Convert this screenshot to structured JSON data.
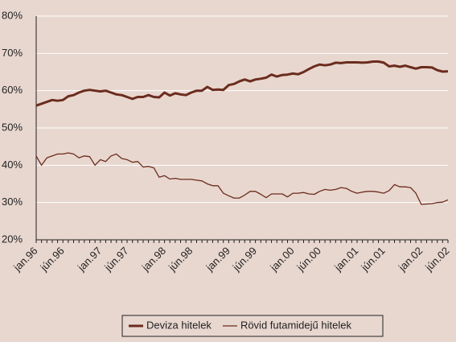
{
  "chart_data": {
    "type": "line",
    "categories": [
      "jan.96",
      null,
      null,
      null,
      null,
      "jún.96",
      null,
      null,
      null,
      null,
      null,
      null,
      "jan.97",
      null,
      null,
      null,
      null,
      "jún.97",
      null,
      null,
      null,
      null,
      null,
      null,
      "jan.98",
      null,
      null,
      null,
      null,
      "jún.98",
      null,
      null,
      null,
      null,
      null,
      null,
      "jan.99",
      null,
      null,
      null,
      null,
      "jún.99",
      null,
      null,
      null,
      null,
      null,
      null,
      "jan.00",
      null,
      null,
      null,
      null,
      "jún.00",
      null,
      null,
      null,
      null,
      null,
      null,
      "jan.01",
      null,
      null,
      null,
      null,
      "jún.01",
      null,
      null,
      null,
      null,
      null,
      null,
      "jan.02",
      null,
      null,
      null,
      null,
      "jún.02"
    ],
    "series": [
      {
        "name": "Deviza hitelek",
        "color": "#6b2c1e",
        "width": 3,
        "values": [
          56,
          56.5,
          57,
          57.5,
          57.3,
          57.5,
          58.5,
          58.8,
          59.5,
          60,
          60.2,
          60,
          59.8,
          60,
          59.5,
          59,
          58.8,
          58.3,
          57.8,
          58.3,
          58.3,
          58.8,
          58.3,
          58.2,
          59.5,
          58.7,
          59.3,
          59,
          58.8,
          59.5,
          60,
          60,
          61,
          60.2,
          60.3,
          60.2,
          61.5,
          61.8,
          62.5,
          63,
          62.5,
          63,
          63.2,
          63.5,
          64.3,
          63.8,
          64.2,
          64.3,
          64.6,
          64.4,
          65,
          65.8,
          66.5,
          67,
          66.8,
          67,
          67.5,
          67.4,
          67.6,
          67.6,
          67.6,
          67.5,
          67.6,
          67.8,
          67.8,
          67.5,
          66.5,
          66.7,
          66.4,
          66.7,
          66.3,
          65.9,
          66.3,
          66.3,
          66.2,
          65.5,
          65.1,
          65.2
        ]
      },
      {
        "name": "Rövid futamidejű hitelek",
        "color": "#6b2c1e",
        "width": 1.3,
        "values": [
          42.5,
          40,
          42,
          42.5,
          43,
          43,
          43.3,
          43,
          42,
          42.5,
          42.3,
          40,
          41.5,
          41,
          42.5,
          43,
          41.8,
          41.5,
          40.8,
          41,
          39.5,
          39.7,
          39.3,
          36.8,
          37.2,
          36.3,
          36.5,
          36.2,
          36.2,
          36.2,
          36,
          35.8,
          35,
          34.5,
          34.5,
          32.5,
          31.8,
          31.2,
          31.2,
          32,
          33,
          33,
          32.2,
          31.3,
          32.3,
          32.3,
          32.3,
          31.5,
          32.5,
          32.5,
          32.7,
          32.3,
          32.2,
          33,
          33.5,
          33.3,
          33.5,
          34,
          33.8,
          33,
          32.5,
          32.8,
          33,
          33,
          32.8,
          32.5,
          33.2,
          34.8,
          34.2,
          34.2,
          34,
          32.5,
          29.5,
          29.6,
          29.7,
          30,
          30.1,
          30.7
        ]
      }
    ],
    "ylim": [
      20,
      80
    ],
    "yticks": [
      {
        "value": 20,
        "label": "20%"
      },
      {
        "value": 30,
        "label": "30%"
      },
      {
        "value": 40,
        "label": "40%"
      },
      {
        "value": 50,
        "label": "50%"
      },
      {
        "value": 60,
        "label": "60%"
      },
      {
        "value": 70,
        "label": "70%"
      },
      {
        "value": 80,
        "label": "80%"
      }
    ],
    "grid": true,
    "legend": "bottom"
  }
}
